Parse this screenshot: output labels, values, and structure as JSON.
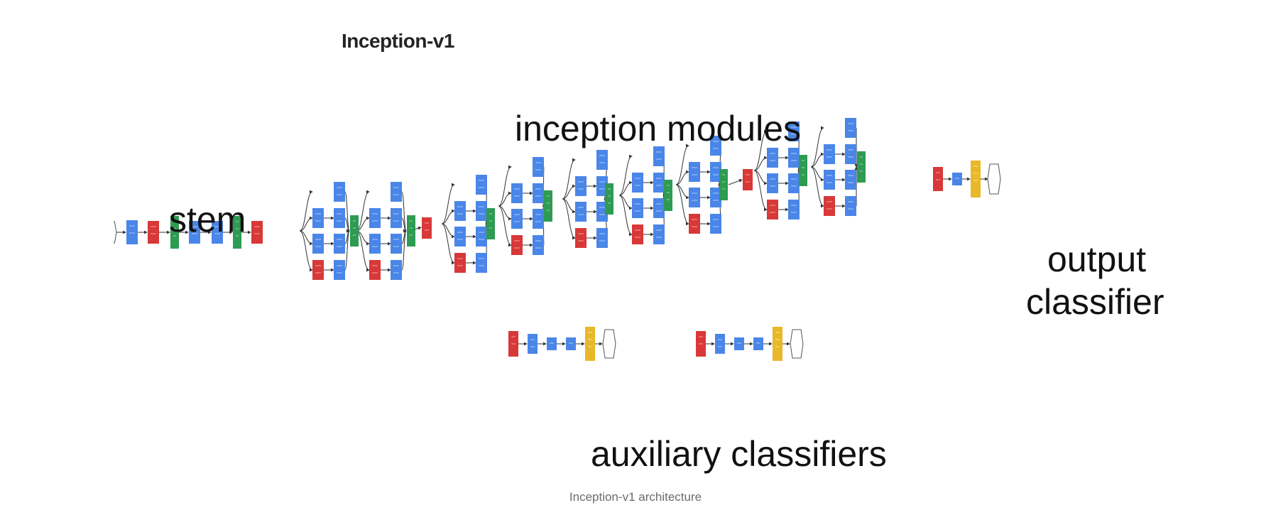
{
  "article": {
    "heading": "Inception-v1",
    "caption": "Inception-v1 architecture"
  },
  "figure": {
    "labels": {
      "stem": "stem",
      "inception_modules": "inception modules",
      "output_classifier_line1": "output",
      "output_classifier_line2": "classifier",
      "auxiliary_classifiers": "auxiliary classifiers"
    },
    "colors": {
      "conv": "#4a86e8",
      "pool": "#d93838",
      "concat_norm": "#2e9b52",
      "softmax_layer": "#e9b829",
      "edge": "#333333",
      "io_node": "#ffffff"
    }
  }
}
